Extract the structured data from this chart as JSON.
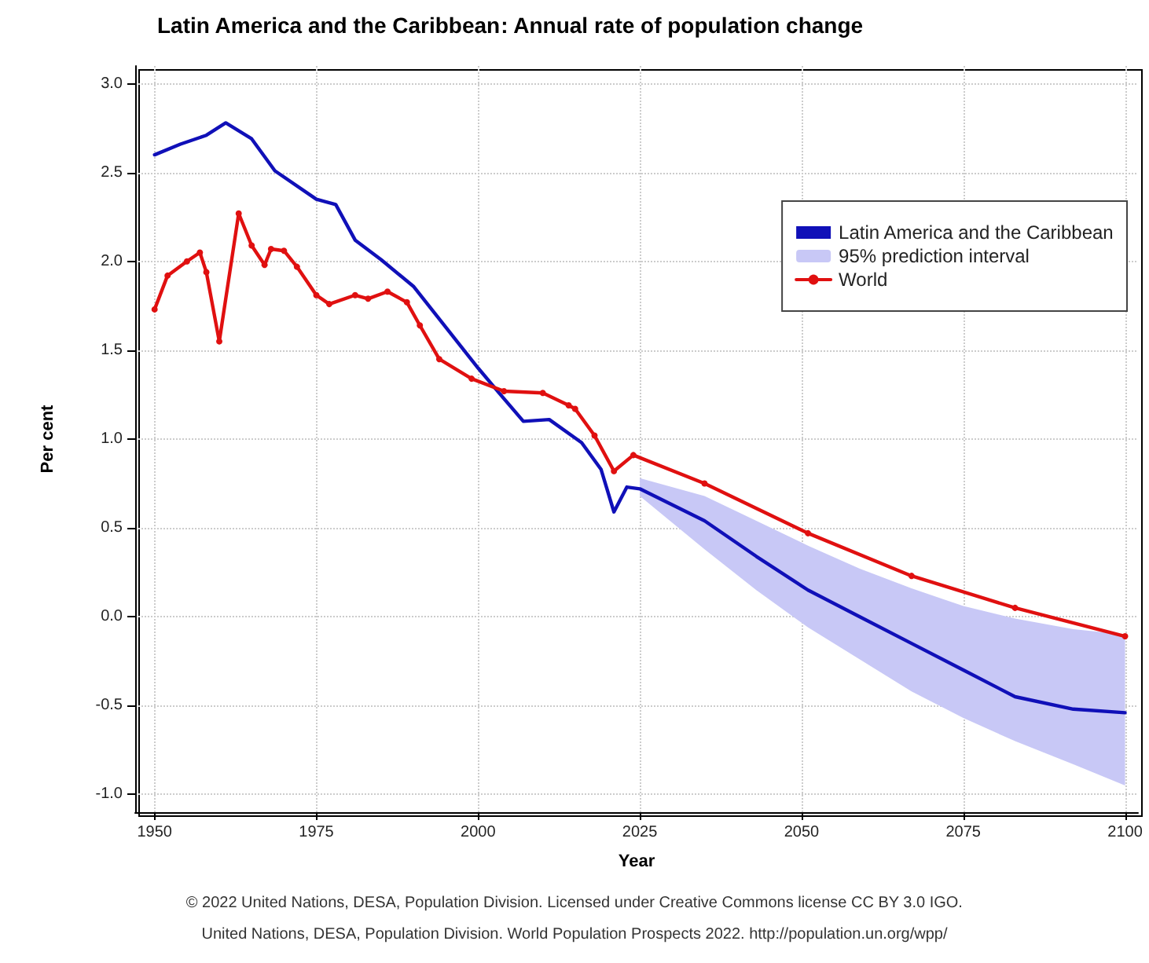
{
  "chart_data": {
    "type": "line",
    "title": "Latin America and the Caribbean: Annual rate of population change",
    "xlabel": "Year",
    "ylabel": "Per cent",
    "annotations": [
      "© 2022 United Nations, DESA, Population Division. Licensed under Creative Commons license CC BY 3.0 IGO.",
      "United Nations, DESA, Population Division. World Population Prospects 2022. http://population.un.org/wpp/"
    ],
    "series": [
      {
        "name": "Latin America and the Caribbean",
        "color": "#1010b8",
        "marker": "none",
        "x": [
          1950,
          1954,
          1958,
          1961,
          1965,
          1968.6,
          1975,
          1978,
          1981,
          1985,
          1990,
          2000,
          2003,
          2007,
          2011,
          2016,
          2019,
          2021,
          2023,
          2025,
          2035,
          2043,
          2051,
          2059,
          2067,
          2075,
          2083,
          2092,
          2100
        ],
        "values": [
          2.6,
          2.66,
          2.71,
          2.78,
          2.69,
          2.51,
          2.35,
          2.32,
          2.12,
          2.01,
          1.86,
          1.4,
          1.27,
          1.1,
          1.11,
          0.98,
          0.83,
          0.59,
          0.73,
          0.72,
          0.54,
          0.34,
          0.15,
          0.0,
          -0.15,
          -0.3,
          -0.45,
          -0.52,
          -0.54
        ]
      },
      {
        "name": "95% prediction interval",
        "color": "#c8c8f6",
        "x": [
          2025,
          2035,
          2043,
          2051,
          2059,
          2067,
          2075,
          2083,
          2092,
          2100
        ],
        "values": [
          null,
          null,
          null,
          null,
          null,
          null,
          null,
          null,
          null,
          null
        ],
        "lower": [
          0.68,
          0.38,
          0.15,
          -0.06,
          -0.24,
          -0.42,
          -0.57,
          -0.7,
          -0.83,
          -0.95
        ],
        "upper": [
          0.78,
          0.68,
          0.54,
          0.4,
          0.27,
          0.16,
          0.06,
          -0.01,
          -0.07,
          -0.1
        ]
      },
      {
        "name": "World",
        "color": "#e01010",
        "marker": "circle",
        "x": [
          1950,
          1952,
          1955,
          1957,
          1958,
          1960,
          1963,
          1965,
          1967,
          1968,
          1970,
          1972,
          1975,
          1977,
          1981,
          1983,
          1986,
          1989,
          1991,
          1994,
          1999,
          2004,
          2010,
          2014,
          2015,
          2018,
          2021,
          2024,
          2035,
          2051,
          2067,
          2083,
          2100
        ],
        "values": [
          1.73,
          1.92,
          2.0,
          2.05,
          1.94,
          1.55,
          2.27,
          2.09,
          1.98,
          2.07,
          2.06,
          1.97,
          1.81,
          1.76,
          1.81,
          1.79,
          1.83,
          1.77,
          1.64,
          1.45,
          1.34,
          1.27,
          1.26,
          1.19,
          1.17,
          1.02,
          0.82,
          0.91,
          0.75,
          0.47,
          0.23,
          0.05,
          -0.11
        ]
      }
    ],
    "xlim": [
      1947,
      2102
    ],
    "xticks": [
      1950,
      1975,
      2000,
      2025,
      2050,
      2075,
      2100
    ],
    "ylim": [
      -1.1,
      3.1
    ],
    "yticks": [
      {
        "value": -1,
        "label": "-1.0"
      },
      {
        "value": -0.5,
        "label": "-0.5"
      },
      {
        "value": 0,
        "label": "0.0"
      },
      {
        "value": 0.5,
        "label": "0.5"
      },
      {
        "value": 1,
        "label": "1.0"
      },
      {
        "value": 1.5,
        "label": "1.5"
      },
      {
        "value": 2,
        "label": "2.0"
      },
      {
        "value": 2.5,
        "label": "2.5"
      },
      {
        "value": 3,
        "label": "3.0"
      }
    ],
    "grid": true,
    "legend": "top right",
    "line_style": "solid"
  }
}
